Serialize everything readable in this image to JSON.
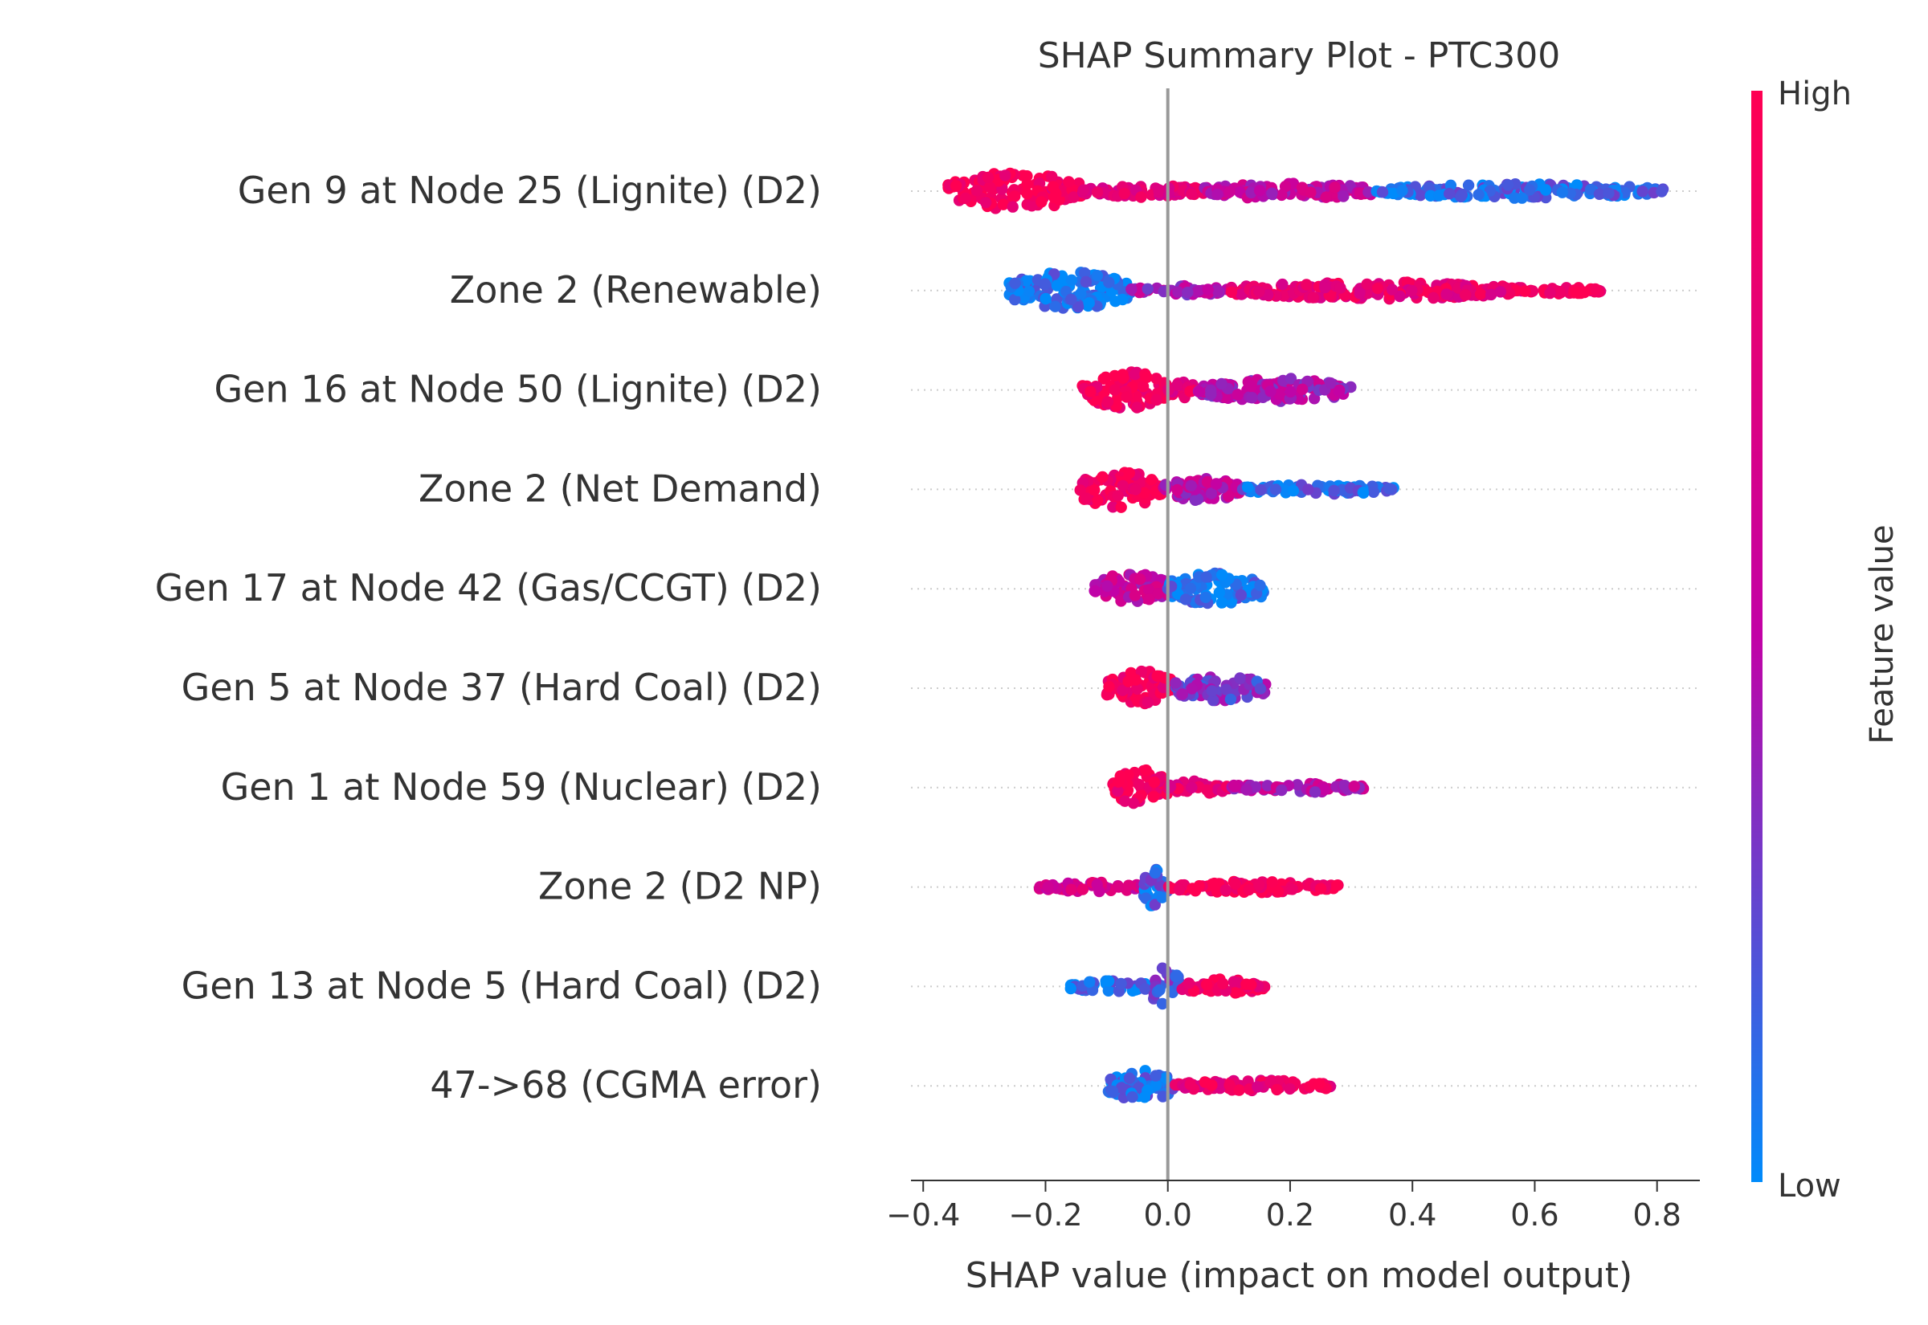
{
  "chart_data": {
    "type": "scatter",
    "title": "SHAP Summary Plot - PTC300",
    "xlabel": "SHAP value (impact on model output)",
    "xlim": [
      -0.42,
      0.87
    ],
    "xticks": [
      -0.4,
      -0.2,
      0.0,
      0.2,
      0.4,
      0.6,
      0.8
    ],
    "xtick_labels": [
      "−0.4",
      "−0.2",
      "0.0",
      "0.2",
      "0.4",
      "0.6",
      "0.8"
    ],
    "colorbar": {
      "label": "Feature value",
      "high_label": "High",
      "low_label": "Low",
      "high_color": "#ff0052",
      "low_color": "#008bfb"
    },
    "features": [
      {
        "name": "Gen 9 at Node 25 (Lignite) (D2)",
        "min": -0.36,
        "max": 0.81,
        "segments": [
          {
            "from": -0.36,
            "to": -0.14,
            "width": 0.4,
            "value": 0.95
          },
          {
            "from": -0.14,
            "to": 0.06,
            "width": 0.13,
            "value": 0.75
          },
          {
            "from": 0.06,
            "to": 0.34,
            "width": 0.17,
            "value": 0.55
          },
          {
            "from": 0.34,
            "to": 0.81,
            "width": 0.15,
            "value": 0.12
          }
        ]
      },
      {
        "name": "Zone 2 (Renewable)",
        "min": -0.26,
        "max": 0.71,
        "segments": [
          {
            "from": -0.26,
            "to": -0.06,
            "width": 0.4,
            "value": 0.08
          },
          {
            "from": -0.06,
            "to": 0.1,
            "width": 0.1,
            "value": 0.45
          },
          {
            "from": 0.1,
            "to": 0.58,
            "width": 0.18,
            "value": 0.82
          },
          {
            "from": 0.58,
            "to": 0.71,
            "width": 0.07,
            "value": 0.95
          }
        ]
      },
      {
        "name": "Gen 16 at Node 50 (Lignite) (D2)",
        "min": -0.14,
        "max": 0.3,
        "segments": [
          {
            "from": -0.14,
            "to": 0.0,
            "width": 0.4,
            "value": 0.93
          },
          {
            "from": 0.0,
            "to": 0.05,
            "width": 0.18,
            "value": 0.8
          },
          {
            "from": 0.05,
            "to": 0.3,
            "width": 0.25,
            "value": 0.45
          }
        ]
      },
      {
        "name": "Zone 2 (Net Demand)",
        "min": -0.15,
        "max": 0.37,
        "segments": [
          {
            "from": -0.15,
            "to": -0.01,
            "width": 0.38,
            "value": 0.93
          },
          {
            "from": -0.01,
            "to": 0.12,
            "width": 0.24,
            "value": 0.5
          },
          {
            "from": 0.12,
            "to": 0.37,
            "width": 0.1,
            "value": 0.12
          }
        ]
      },
      {
        "name": "Gen 17 at Node 42 (Gas/CCGT) (D2)",
        "min": -0.12,
        "max": 0.16,
        "segments": [
          {
            "from": -0.12,
            "to": 0.0,
            "width": 0.35,
            "value": 0.55
          },
          {
            "from": 0.0,
            "to": 0.16,
            "width": 0.35,
            "value": 0.1
          }
        ]
      },
      {
        "name": "Gen 5 at Node 37 (Hard Coal) (D2)",
        "min": -0.1,
        "max": 0.16,
        "segments": [
          {
            "from": -0.1,
            "to": 0.01,
            "width": 0.38,
            "value": 0.93
          },
          {
            "from": 0.01,
            "to": 0.16,
            "width": 0.28,
            "value": 0.3
          }
        ]
      },
      {
        "name": "Gen 1 at Node 59 (Nuclear) (D2)",
        "min": -0.09,
        "max": 0.32,
        "segments": [
          {
            "from": -0.09,
            "to": 0.0,
            "width": 0.4,
            "value": 0.93
          },
          {
            "from": 0.0,
            "to": 0.1,
            "width": 0.15,
            "value": 0.8
          },
          {
            "from": 0.1,
            "to": 0.32,
            "width": 0.1,
            "value": 0.5
          }
        ]
      },
      {
        "name": "Zone 2 (D2 NP)",
        "min": -0.21,
        "max": 0.28,
        "segments": [
          {
            "from": -0.21,
            "to": -0.04,
            "width": 0.1,
            "value": 0.65
          },
          {
            "from": -0.04,
            "to": 0.0,
            "width": 0.45,
            "value": 0.15
          },
          {
            "from": 0.0,
            "to": 0.28,
            "width": 0.12,
            "value": 0.93
          }
        ]
      },
      {
        "name": "Gen 13 at Node 5 (Hard Coal) (D2)",
        "min": -0.16,
        "max": 0.16,
        "segments": [
          {
            "from": -0.16,
            "to": -0.03,
            "width": 0.12,
            "value": 0.1
          },
          {
            "from": -0.03,
            "to": 0.02,
            "width": 0.4,
            "value": 0.25
          },
          {
            "from": 0.02,
            "to": 0.16,
            "width": 0.16,
            "value": 0.93
          }
        ]
      },
      {
        "name": "47->68 (CGMA error)",
        "min": -0.1,
        "max": 0.27,
        "segments": [
          {
            "from": -0.1,
            "to": 0.01,
            "width": 0.33,
            "value": 0.1
          },
          {
            "from": 0.01,
            "to": 0.27,
            "width": 0.12,
            "value": 0.85
          }
        ]
      }
    ]
  }
}
